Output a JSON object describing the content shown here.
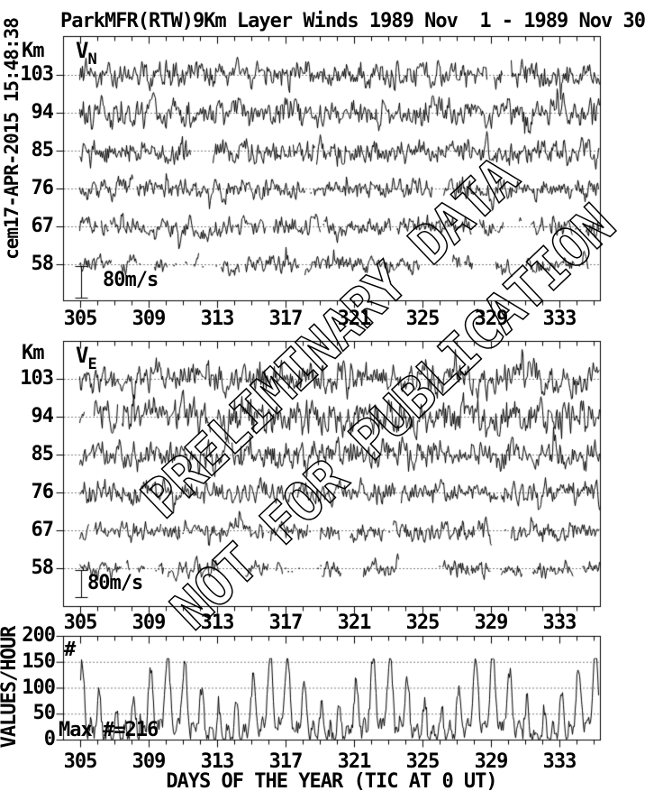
{
  "header": {
    "title": "ParkMFR(RTW)9Km Layer Winds 1989 Nov  1 - 1989 Nov 30",
    "timestamp": "cem17-APR-2015 15:48:38"
  },
  "watermark": {
    "line1": "PRELIMINARY DATA",
    "line2": "NOT FOR PUBLICATION"
  },
  "footer": {
    "caption": "DAYS OF THE YEAR (TIC AT 0 UT)"
  },
  "colors": {
    "ink": "#000000",
    "background": "#ffffff"
  },
  "chart_data": [
    {
      "panel": "northward-wind",
      "type": "line",
      "label": "V",
      "label_sub": "N",
      "unit": "Km",
      "altitudes_km": [
        103,
        94,
        85,
        76,
        67,
        58
      ],
      "scale_bar": {
        "label": "80m/s",
        "value_ms": 80
      },
      "x_axis": {
        "label_ticks": [
          305,
          309,
          313,
          317,
          321,
          325,
          329,
          333
        ],
        "minor_tick_days": 1,
        "range_days": [
          304,
          335.4
        ]
      },
      "layers": [
        {
          "altitude_km": 103,
          "amplitude_ms": 24,
          "coverage": 0.99
        },
        {
          "altitude_km": 94,
          "amplitude_ms": 26,
          "coverage": 0.99
        },
        {
          "altitude_km": 85,
          "amplitude_ms": 23,
          "coverage": 0.98
        },
        {
          "altitude_km": 76,
          "amplitude_ms": 19,
          "coverage": 0.96
        },
        {
          "altitude_km": 67,
          "amplitude_ms": 18,
          "coverage": 0.85
        },
        {
          "altitude_km": 58,
          "amplitude_ms": 16,
          "coverage": 0.62
        }
      ],
      "seed": 20151748
    },
    {
      "panel": "eastward-wind",
      "type": "line",
      "label": "V",
      "label_sub": "E",
      "unit": "Km",
      "altitudes_km": [
        103,
        94,
        85,
        76,
        67,
        58
      ],
      "scale_bar": {
        "label": "80m/s",
        "value_ms": 80
      },
      "x_axis": {
        "label_ticks": [
          305,
          309,
          313,
          317,
          321,
          325,
          329,
          333
        ],
        "minor_tick_days": 1,
        "range_days": [
          304,
          335.4
        ]
      },
      "layers": [
        {
          "altitude_km": 103,
          "amplitude_ms": 28,
          "coverage": 0.99
        },
        {
          "altitude_km": 94,
          "amplitude_ms": 33,
          "coverage": 0.995
        },
        {
          "altitude_km": 85,
          "amplitude_ms": 26,
          "coverage": 0.98
        },
        {
          "altitude_km": 76,
          "amplitude_ms": 21,
          "coverage": 0.95
        },
        {
          "altitude_km": 67,
          "amplitude_ms": 19,
          "coverage": 0.82
        },
        {
          "altitude_km": 58,
          "amplitude_ms": 16,
          "coverage": 0.6
        }
      ],
      "seed": 19891130
    },
    {
      "panel": "data-counts",
      "type": "line",
      "ylabel": "VALUES/HOUR",
      "symbol": "#",
      "max_label": "Max #=216",
      "max_count": 216,
      "y_ticks": [
        0,
        50,
        100,
        150,
        200
      ],
      "grid_values": [
        50,
        100,
        150
      ],
      "ylim": [
        0,
        200
      ],
      "oscillation": "diurnal peaks roughly 80-155 counts, troughs near 0-20",
      "x_axis": {
        "label_ticks": [
          305,
          309,
          313,
          317,
          321,
          325,
          329,
          333
        ],
        "minor_tick_days": 1,
        "range_days": [
          304,
          335.4
        ]
      },
      "seed": 305216
    }
  ]
}
